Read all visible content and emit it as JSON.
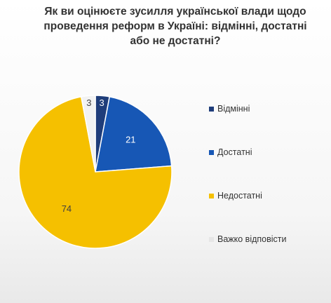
{
  "chart_data": {
    "type": "pie",
    "title_lines": [
      "Як ви оцінюєте зусилля української влади щодо",
      "проведення реформ в Україні: відмінні, достатні",
      "або не достатні?"
    ],
    "categories": [
      "Відмінні",
      "Достатні",
      "Недостатні",
      "Важко відповісти"
    ],
    "values": [
      3,
      21,
      74,
      3
    ],
    "colors": [
      "#1f3d7a",
      "#1757b5",
      "#f5c000",
      "#f2f2f2"
    ],
    "label_colors": [
      "#ffffff",
      "#ffffff",
      "#404040",
      "#404040"
    ],
    "legend_position": "right"
  }
}
